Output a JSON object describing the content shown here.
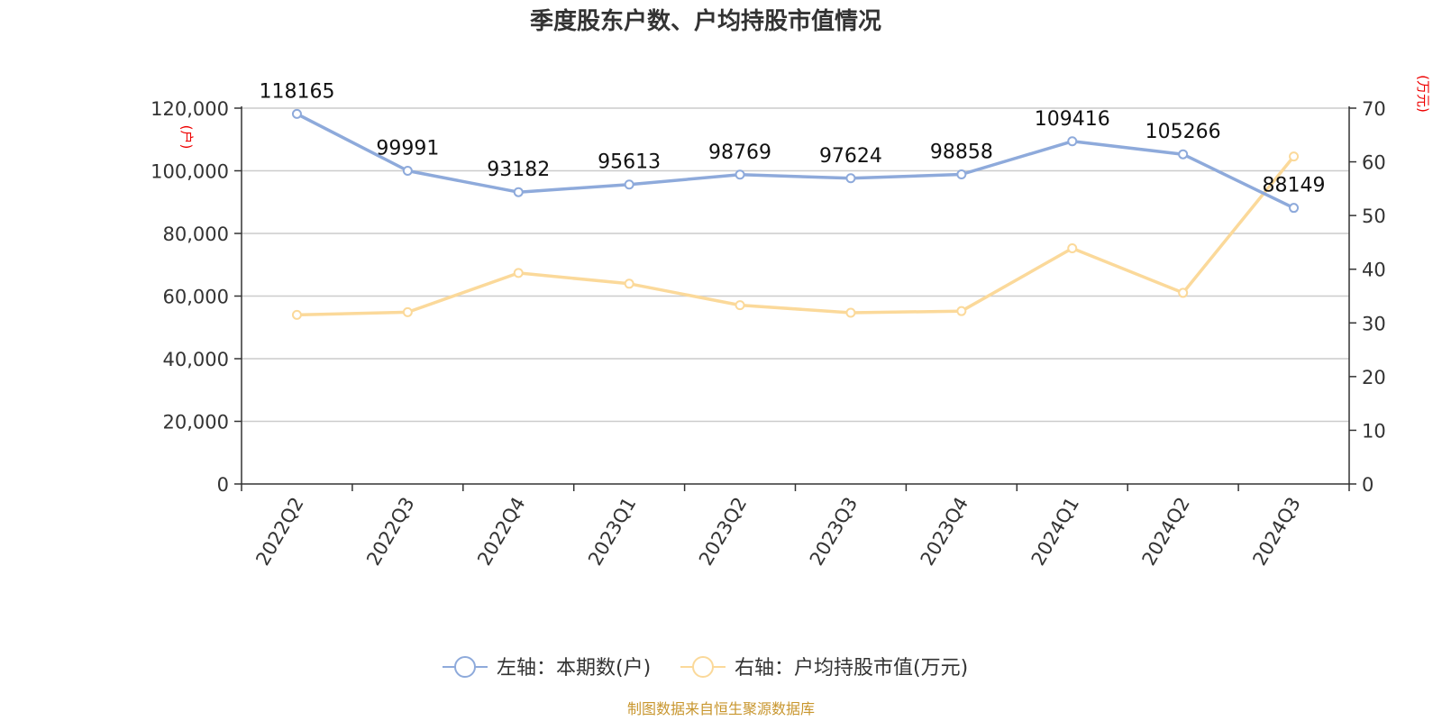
{
  "chart_data": {
    "type": "line",
    "title": "季度股东户数、户均持股市值情况",
    "categories": [
      "2022Q2",
      "2022Q3",
      "2022Q4",
      "2023Q1",
      "2023Q2",
      "2023Q3",
      "2023Q4",
      "2024Q1",
      "2024Q2",
      "2024Q3"
    ],
    "left_axis": {
      "unit_label": "(户)",
      "range": [
        0,
        120000
      ],
      "ticks": [
        "0",
        "20,000",
        "40,000",
        "60,000",
        "80,000",
        "100,000",
        "120,000"
      ]
    },
    "right_axis": {
      "unit_label": "(万元)",
      "range": [
        0,
        70
      ],
      "ticks": [
        "0",
        "10",
        "20",
        "30",
        "40",
        "50",
        "60",
        "70"
      ]
    },
    "series": [
      {
        "name": "左轴：本期数(户)",
        "axis": "left",
        "color": "#8eaadb",
        "values": [
          118165,
          99991,
          93182,
          95613,
          98769,
          97624,
          98858,
          109416,
          105266,
          88149
        ],
        "data_labels": [
          "118165",
          "99991",
          "93182",
          "95613",
          "98769",
          "97624",
          "98858",
          "109416",
          "105266",
          "88149"
        ]
      },
      {
        "name": "右轴：户均持股市值(万元)",
        "axis": "right",
        "color": "#fbd99a",
        "values": [
          31.5,
          32.0,
          39.3,
          37.3,
          33.3,
          31.9,
          32.2,
          43.9,
          35.6,
          61.0
        ]
      }
    ],
    "grid": true,
    "legend_position": "bottom-center"
  },
  "source": "制图数据来自恒生聚源数据库"
}
